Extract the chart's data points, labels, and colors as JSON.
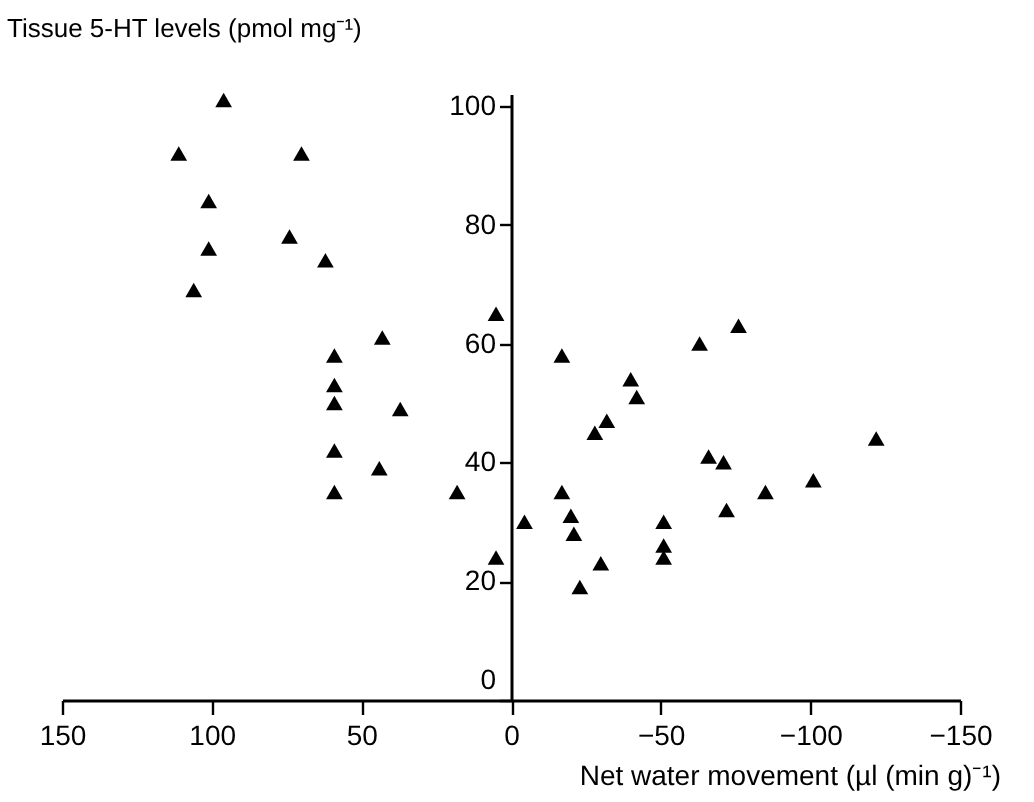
{
  "chart_data": {
    "type": "scatter",
    "xlabel": "Net water movement (µl (min g)⁻¹)",
    "ylabel": "Tissue 5-HT levels (pmol mg⁻¹)",
    "xlim": [
      150,
      -150
    ],
    "xticks": [
      150,
      100,
      50,
      0,
      -50,
      -100,
      -150
    ],
    "ylim": [
      0,
      102
    ],
    "yticks": [
      0,
      20,
      40,
      60,
      80,
      100
    ],
    "grid": false,
    "legend": false,
    "marker": "triangle",
    "series": [
      {
        "color": "#000000",
        "x": [
          96,
          111,
          70,
          101,
          101,
          106,
          74,
          62,
          5,
          43,
          59,
          59,
          59,
          37,
          59,
          44,
          18,
          59,
          5,
          -4.5,
          -17,
          -17,
          -20,
          -21,
          -23,
          -30,
          -28,
          -32,
          -40,
          -42,
          -51,
          -51,
          -51,
          -63,
          -76,
          -66,
          -71,
          -72,
          -85,
          -101,
          -122
        ],
        "values": [
          101,
          92,
          92,
          84,
          76,
          69,
          78,
          74,
          65,
          61,
          58,
          53,
          50,
          49,
          42,
          39,
          35,
          35,
          24,
          30,
          58,
          35,
          31,
          28,
          19,
          23,
          45,
          47,
          54,
          51,
          30,
          26,
          24,
          60,
          63,
          41,
          40,
          32,
          35,
          37,
          44
        ]
      }
    ]
  }
}
